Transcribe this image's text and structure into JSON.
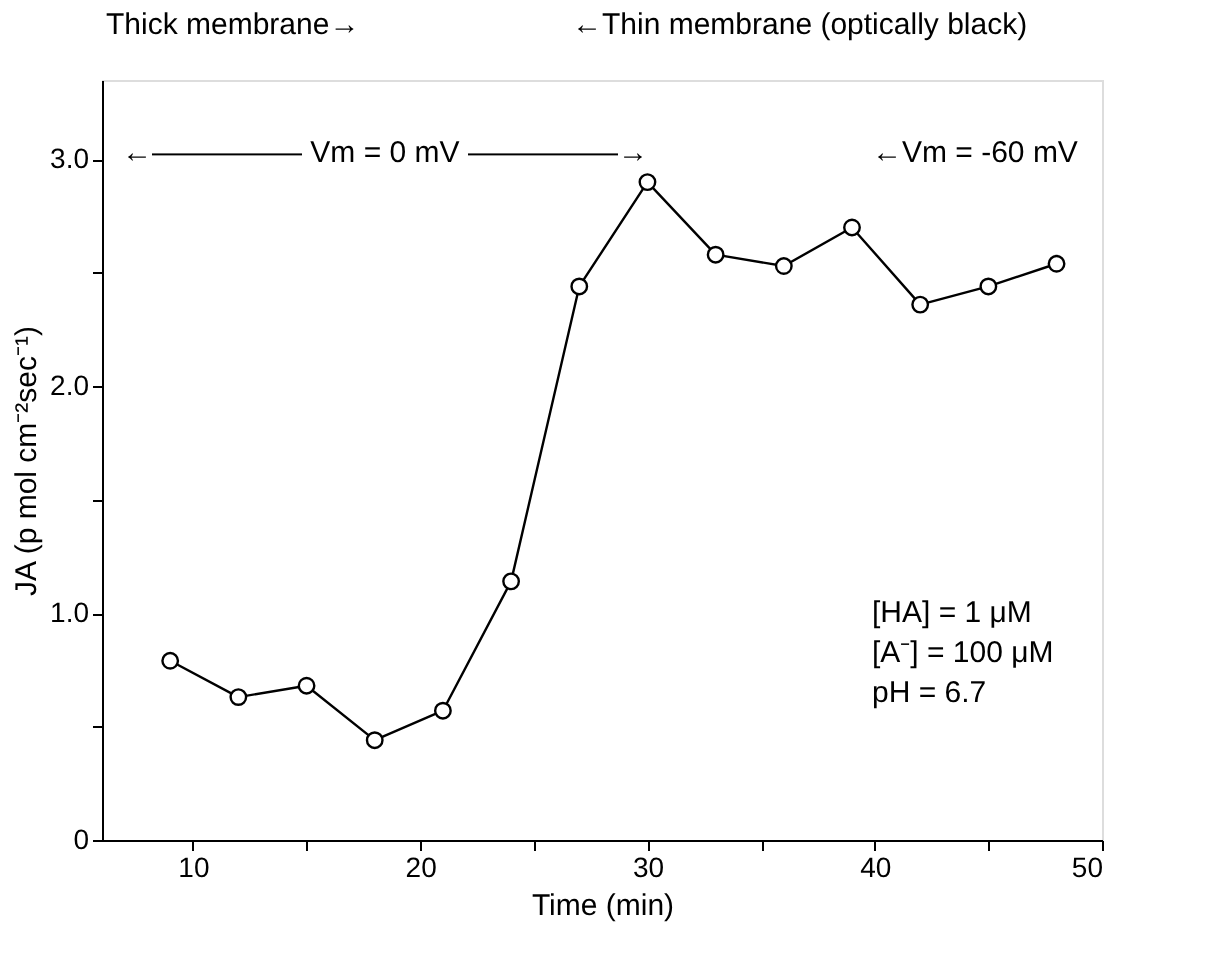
{
  "chart_data": {
    "type": "line",
    "xlabel": "Time (min)",
    "ylabel": "JA (p mol cm⁻²sec⁻¹)",
    "x": [
      9,
      12,
      15,
      18,
      21,
      24,
      27,
      30,
      33,
      36,
      39,
      42,
      45,
      48
    ],
    "series": [
      {
        "color": "#000000",
        "values": [
          0.79,
          0.63,
          0.68,
          0.44,
          0.57,
          1.14,
          2.44,
          2.9,
          2.58,
          2.53,
          2.7,
          2.36,
          2.44,
          2.54
        ]
      }
    ],
    "xlim": [
      6,
      50
    ],
    "xticks": [
      10,
      {
        "value": 15,
        "label": null
      },
      20,
      {
        "value": 25,
        "label": null
      },
      30,
      {
        "value": 35,
        "label": null
      },
      40,
      {
        "value": 45,
        "label": null
      },
      50
    ],
    "ylim": [
      0,
      3.35
    ],
    "yticks": [
      0,
      {
        "value": 0.5,
        "label": null
      },
      {
        "value": 1,
        "label": "1.0"
      },
      {
        "value": 1.5,
        "label": null
      },
      {
        "value": 2,
        "label": "2.0"
      },
      {
        "value": 2.5,
        "label": null
      },
      {
        "value": 3,
        "label": "3.0"
      }
    ],
    "annotations": [
      "Thick membrane→",
      "←Thin membrane (optically black)",
      "←————— Vm = 0 mV —————→",
      "←Vm = -60 mV",
      "[HA] = 1 μM",
      "[A⁻] = 100 μM",
      "pH = 6.7"
    ],
    "grid": false,
    "marker": "circle",
    "line_style": "solid"
  }
}
